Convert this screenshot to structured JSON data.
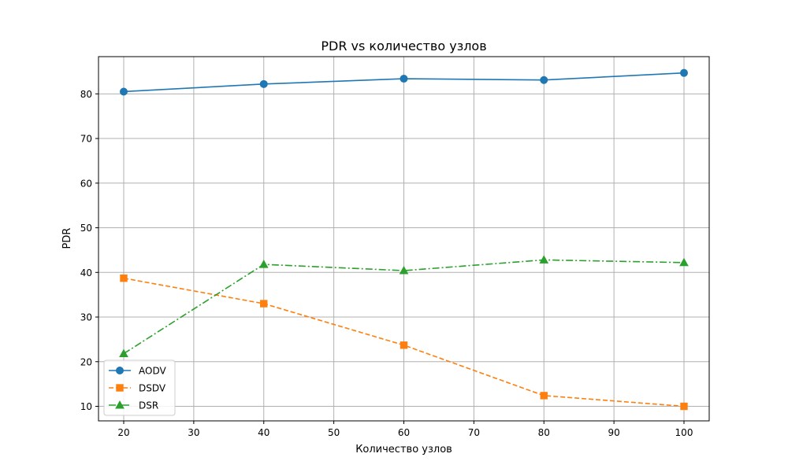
{
  "chart_data": {
    "type": "line",
    "title": "PDR vs количество узлов",
    "xlabel": "Количество узлов",
    "ylabel": "PDR",
    "xlim": [
      16.4,
      103.6
    ],
    "ylim": [
      6.74,
      88.34
    ],
    "xticks": [
      20,
      30,
      40,
      50,
      60,
      70,
      80,
      90,
      100
    ],
    "yticks": [
      10,
      20,
      30,
      40,
      50,
      60,
      70,
      80
    ],
    "grid": true,
    "legend_position": "lower-left",
    "x": [
      20,
      40,
      60,
      80,
      100
    ],
    "series": [
      {
        "name": "AODV",
        "values": [
          80.5,
          82.2,
          83.4,
          83.1,
          84.7
        ],
        "color": "#1f77b4",
        "linestyle": "solid",
        "marker": "circle"
      },
      {
        "name": "DSDV",
        "values": [
          38.7,
          33.0,
          23.7,
          12.4,
          10.0
        ],
        "color": "#ff7f0e",
        "linestyle": "dashed",
        "marker": "square"
      },
      {
        "name": "DSR",
        "values": [
          21.8,
          41.8,
          40.4,
          42.8,
          42.2
        ],
        "color": "#2ca02c",
        "linestyle": "dashdot",
        "marker": "triangle"
      }
    ]
  }
}
